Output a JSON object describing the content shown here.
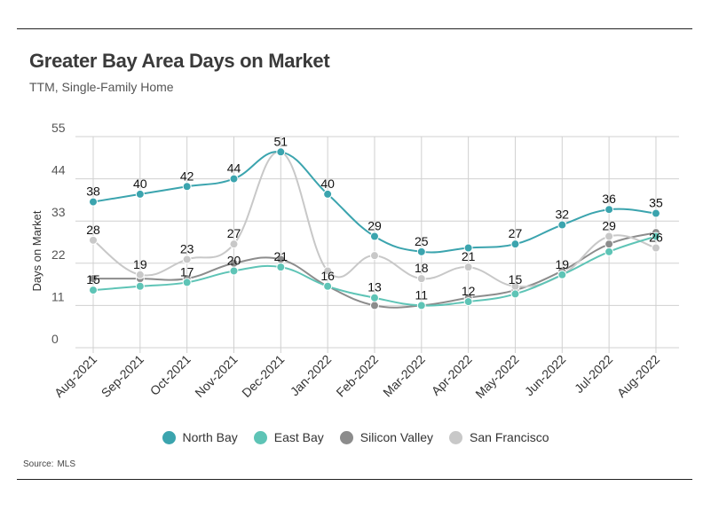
{
  "title": "Greater Bay Area Days on Market",
  "subtitle": "TTM, Single-Family Home",
  "source_label": "Source:",
  "source_value": "MLS",
  "chart_data": {
    "type": "line",
    "categories": [
      "Aug-2021",
      "Sep-2021",
      "Oct-2021",
      "Nov-2021",
      "Dec-2021",
      "Jan-2022",
      "Feb-2022",
      "Mar-2022",
      "Apr-2022",
      "May-2022",
      "Jun-2022",
      "Jul-2022",
      "Aug-2022"
    ],
    "ylabel": "Days on Market",
    "xlabel": "",
    "ylim": [
      0,
      55
    ],
    "yticks": [
      0,
      11,
      22,
      33,
      44,
      55
    ],
    "grid": true,
    "legend_position": "bottom",
    "series": [
      {
        "name": "Silicon Valley",
        "color": "#8c8c8c",
        "values": [
          18,
          18,
          18,
          22,
          23,
          16,
          11,
          11,
          13,
          15,
          20,
          27,
          30
        ],
        "labels": [
          false,
          false,
          false,
          false,
          false,
          false,
          false,
          false,
          false,
          true,
          false,
          false,
          false
        ]
      },
      {
        "name": "San Francisco",
        "color": "#c8c8c8",
        "values": [
          28,
          19,
          23,
          27,
          51,
          20,
          24,
          18,
          21,
          16,
          19,
          29,
          26
        ],
        "labels": [
          true,
          true,
          true,
          true,
          true,
          false,
          false,
          true,
          true,
          false,
          false,
          true,
          true
        ]
      },
      {
        "name": "East Bay",
        "color": "#5ec4b6",
        "values": [
          15,
          16,
          17,
          20,
          21,
          16,
          13,
          11,
          12,
          14,
          19,
          25,
          29
        ],
        "labels": [
          true,
          false,
          true,
          true,
          true,
          true,
          true,
          true,
          true,
          false,
          true,
          false,
          false
        ]
      },
      {
        "name": "North Bay",
        "color": "#3ba4ae",
        "values": [
          38,
          40,
          42,
          44,
          51,
          40,
          29,
          25,
          26,
          27,
          32,
          36,
          35
        ],
        "labels": [
          true,
          true,
          true,
          true,
          false,
          true,
          true,
          true,
          false,
          true,
          true,
          true,
          true
        ]
      }
    ],
    "legend_order": [
      "North Bay",
      "East Bay",
      "Silicon Valley",
      "San Francisco"
    ]
  }
}
